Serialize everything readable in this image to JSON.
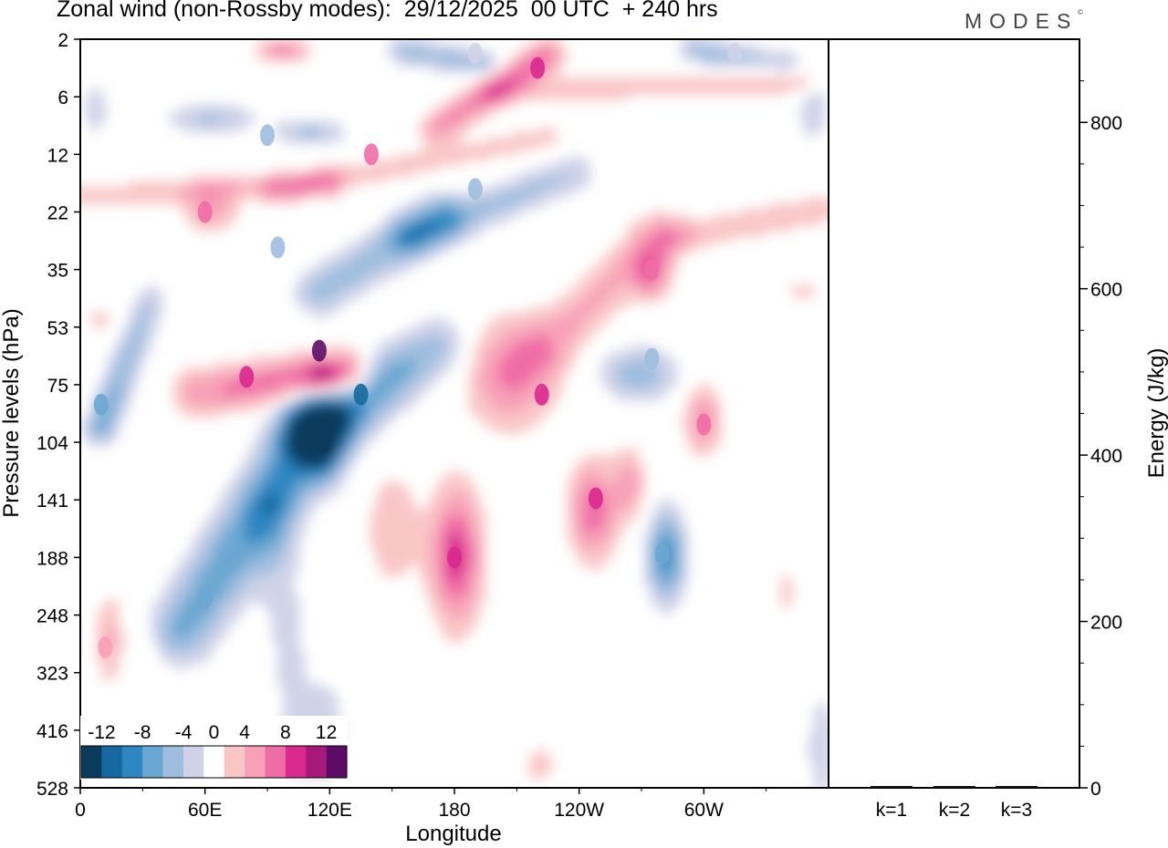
{
  "title": "Zonal wind (non-Rossby modes):  29/12/2025  00 UTC  + 240 hrs",
  "brand": "MODES",
  "brand_mark": "©",
  "chart_data": [
    {
      "type": "heatmap",
      "title": "Zonal wind (non-Rossby modes):  29/12/2025  00 UTC  + 240 hrs",
      "xlabel": "Longitude",
      "ylabel": "Pressure levels (hPa)",
      "x_ticks": [
        "0",
        "60E",
        "120E",
        "180",
        "120W",
        "60W"
      ],
      "x_tick_values": [
        0,
        60,
        120,
        180,
        240,
        300
      ],
      "xlim": [
        0,
        360
      ],
      "y_ticks": [
        "2",
        "6",
        "12",
        "22",
        "35",
        "53",
        "75",
        "104",
        "141",
        "188",
        "248",
        "323",
        "416",
        "528"
      ],
      "colorbar": {
        "labels": [
          "-12",
          "-8",
          "-4",
          "0",
          "4",
          "8",
          "12"
        ],
        "levels": [
          -14,
          -12,
          -10,
          -8,
          -6,
          -4,
          -2,
          2,
          4,
          6,
          8,
          10,
          12,
          14
        ],
        "colors": [
          "#0b3b5c",
          "#1569a0",
          "#2f87c2",
          "#6aa7d2",
          "#9fbedf",
          "#d0d3e8",
          "#ffffff",
          "#f9c6c6",
          "#f7a0b8",
          "#ef6da6",
          "#d9298f",
          "#a61a7a",
          "#5c0c66"
        ]
      },
      "features": [
        {
          "kind": "neg",
          "value": -14,
          "lon": 117,
          "lev": 104
        },
        {
          "kind": "neg",
          "value": -12,
          "lon": 135,
          "lev": 80
        },
        {
          "kind": "neg",
          "value": -8,
          "lon": 60,
          "lev": 230
        },
        {
          "kind": "neg",
          "value": -8,
          "lon": 10,
          "lev": 85
        },
        {
          "kind": "neg",
          "value": -8,
          "lon": 280,
          "lev": 185
        },
        {
          "kind": "neg",
          "value": -6,
          "lon": 275,
          "lev": 65
        },
        {
          "kind": "neg",
          "value": -6,
          "lon": 95,
          "lev": 30
        },
        {
          "kind": "neg",
          "value": -6,
          "lon": 190,
          "lev": 18
        },
        {
          "kind": "neg",
          "value": -6,
          "lon": 90,
          "lev": 10
        },
        {
          "kind": "neg",
          "value": -4,
          "lon": 190,
          "lev": 3
        },
        {
          "kind": "neg",
          "value": -4,
          "lon": 315,
          "lev": 3
        },
        {
          "kind": "pos",
          "value": 12,
          "lon": 115,
          "lev": 62
        },
        {
          "kind": "pos",
          "value": 8,
          "lon": 80,
          "lev": 72
        },
        {
          "kind": "pos",
          "value": 8,
          "lon": 180,
          "lev": 188
        },
        {
          "kind": "pos",
          "value": 8,
          "lon": 248,
          "lev": 140
        },
        {
          "kind": "pos",
          "value": 8,
          "lon": 222,
          "lev": 80
        },
        {
          "kind": "pos",
          "value": 8,
          "lon": 220,
          "lev": 4
        },
        {
          "kind": "pos",
          "value": 6,
          "lon": 140,
          "lev": 12
        },
        {
          "kind": "pos",
          "value": 6,
          "lon": 300,
          "lev": 95
        },
        {
          "kind": "pos",
          "value": 6,
          "lon": 275,
          "lev": 35
        },
        {
          "kind": "pos",
          "value": 6,
          "lon": 60,
          "lev": 22
        },
        {
          "kind": "pos",
          "value": 4,
          "lon": 12,
          "lev": 290
        }
      ]
    },
    {
      "type": "bar",
      "categories": [
        "k=1",
        "k=2",
        "k=3"
      ],
      "values": [
        2,
        1,
        1
      ],
      "ylabel": "Energy (J/kg)",
      "ylim": [
        0,
        900
      ],
      "y_ticks": [
        "0",
        "200",
        "400",
        "600",
        "800"
      ],
      "y_tick_values": [
        0,
        200,
        400,
        600,
        800
      ]
    }
  ]
}
